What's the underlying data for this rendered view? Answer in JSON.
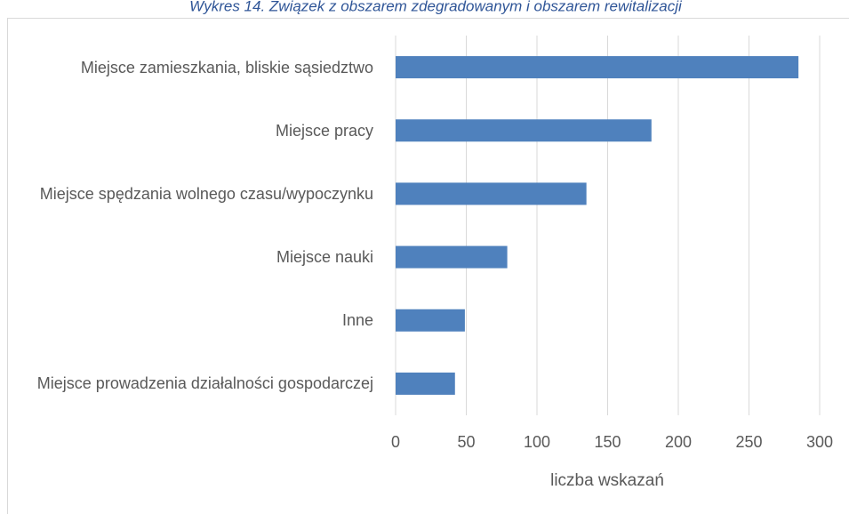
{
  "chart_data": {
    "type": "bar",
    "orientation": "horizontal",
    "title": "Wykres 14. Związek z obszarem zdegradowanym i obszarem rewitalizacji",
    "categories": [
      "Miejsce zamieszkania, bliskie sąsiedztwo",
      "Miejsce pracy",
      "Miejsce spędzania wolnego czasu/wypoczynku",
      "Miejsce nauki",
      "Inne",
      "Miejsce prowadzenia działalności gospodarczej"
    ],
    "values": [
      285,
      181,
      135,
      79,
      49,
      42
    ],
    "color": "#4f81bd",
    "xlabel": "liczba wskazań",
    "xlim": [
      0,
      300
    ],
    "xticks": [
      0,
      50,
      100,
      150,
      200,
      250,
      300
    ],
    "grid": true
  }
}
